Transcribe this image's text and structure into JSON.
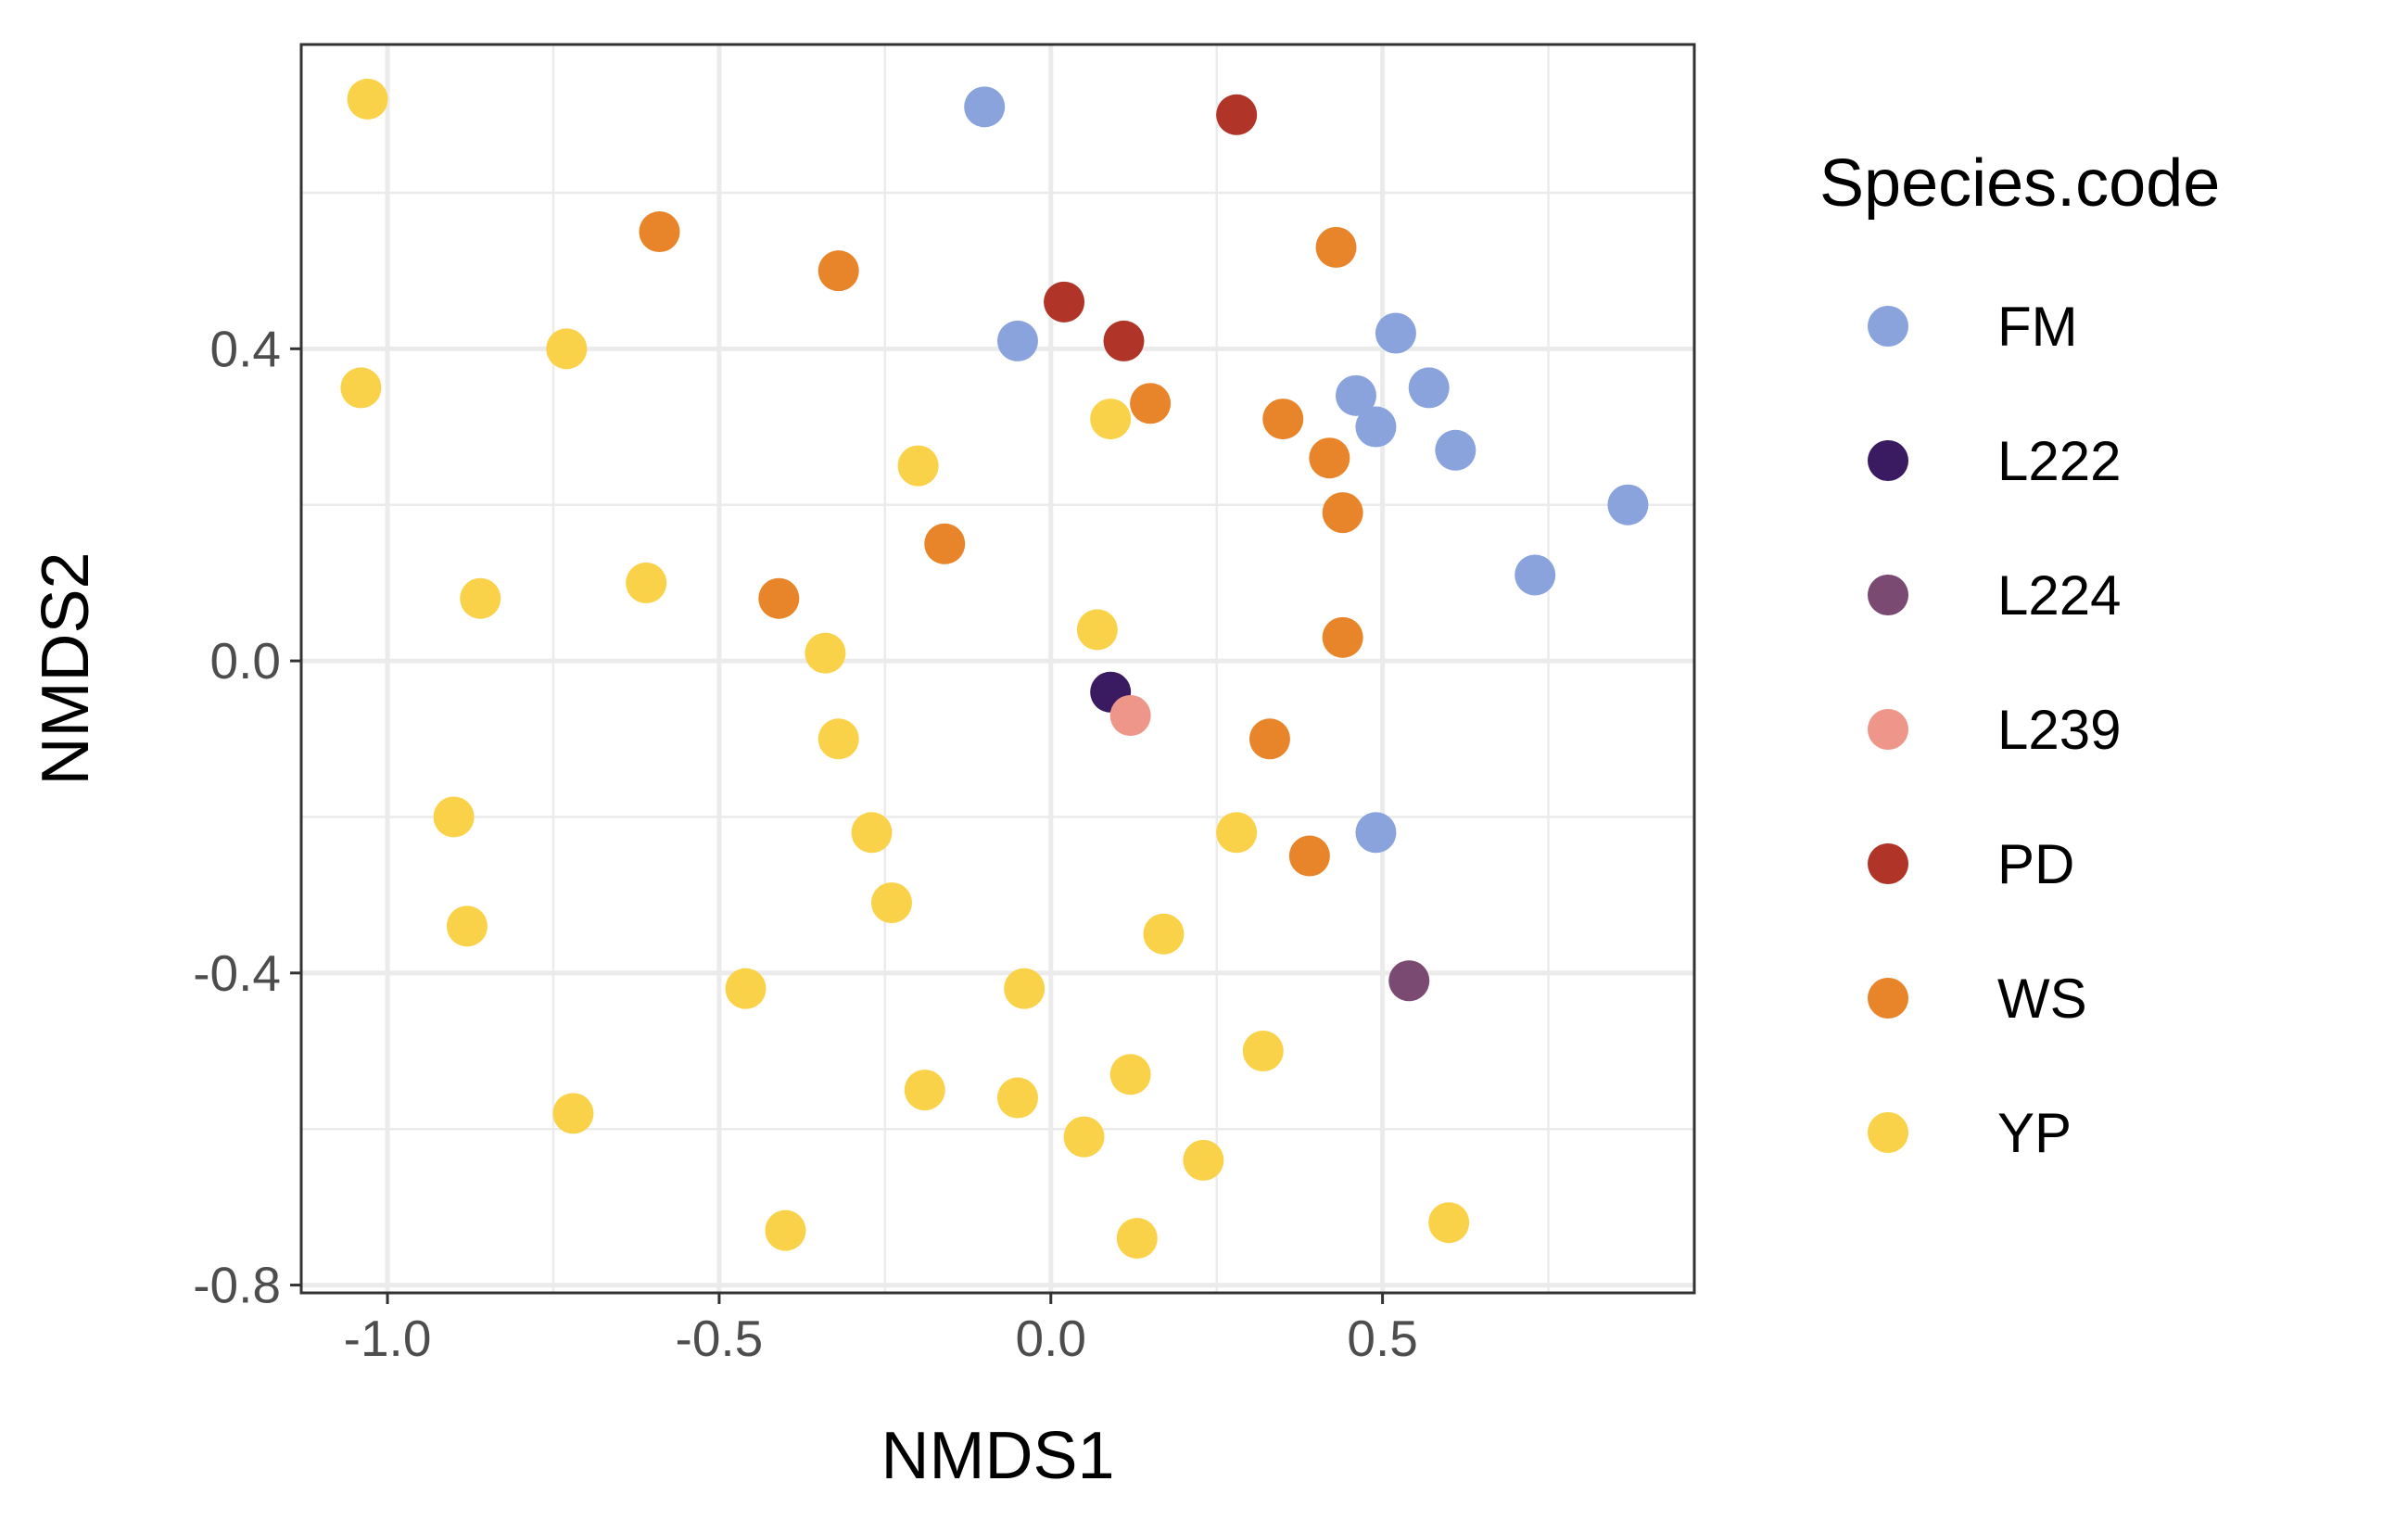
{
  "chart_data": {
    "type": "scatter",
    "xlabel": "NMDS1",
    "ylabel": "NMDS2",
    "xlim": [
      -1.13,
      0.97
    ],
    "ylim": [
      -0.81,
      0.79
    ],
    "xticks": [
      -1.0,
      -0.5,
      0.0,
      0.5
    ],
    "xtick_labels": [
      "-1.0",
      "-0.5",
      "0.0",
      "0.5"
    ],
    "yticks": [
      -0.8,
      -0.4,
      0.0,
      0.4
    ],
    "ytick_labels": [
      "-0.8",
      "-0.4",
      "0.0",
      "0.4"
    ],
    "grid": true,
    "legend": {
      "title": "Species.code",
      "position": "right"
    },
    "series": [
      {
        "name": "FM",
        "color": "#8aa3dd",
        "points": [
          [
            -0.1,
            0.71
          ],
          [
            -0.05,
            0.41
          ],
          [
            0.52,
            0.42
          ],
          [
            0.46,
            0.34
          ],
          [
            0.57,
            0.35
          ],
          [
            0.49,
            0.3
          ],
          [
            0.61,
            0.27
          ],
          [
            0.87,
            0.2
          ],
          [
            0.73,
            0.11
          ],
          [
            0.49,
            -0.22
          ]
        ]
      },
      {
        "name": "L222",
        "color": "#3a1a60",
        "points": [
          [
            0.09,
            -0.04
          ]
        ]
      },
      {
        "name": "L224",
        "color": "#7b4a72",
        "points": [
          [
            0.54,
            -0.41
          ]
        ]
      },
      {
        "name": "L239",
        "color": "#ef968a",
        "points": [
          [
            0.12,
            -0.07
          ]
        ]
      },
      {
        "name": "PD",
        "color": "#b03428",
        "points": [
          [
            0.28,
            0.7
          ],
          [
            0.02,
            0.46
          ],
          [
            0.11,
            0.41
          ]
        ]
      },
      {
        "name": "WS",
        "color": "#e8852a",
        "points": [
          [
            -0.59,
            0.55
          ],
          [
            -0.32,
            0.5
          ],
          [
            0.43,
            0.53
          ],
          [
            0.15,
            0.33
          ],
          [
            0.35,
            0.31
          ],
          [
            0.42,
            0.26
          ],
          [
            0.44,
            0.19
          ],
          [
            -0.16,
            0.15
          ],
          [
            -0.41,
            0.08
          ],
          [
            0.44,
            0.03
          ],
          [
            0.33,
            -0.1
          ],
          [
            0.39,
            -0.25
          ]
        ]
      },
      {
        "name": "YP",
        "color": "#fad24a",
        "points": [
          [
            -1.03,
            0.72
          ],
          [
            -0.73,
            0.4
          ],
          [
            -1.04,
            0.35
          ],
          [
            0.09,
            0.31
          ],
          [
            -0.2,
            0.25
          ],
          [
            -0.86,
            0.08
          ],
          [
            -0.61,
            0.1
          ],
          [
            -0.34,
            0.01
          ],
          [
            0.07,
            0.04
          ],
          [
            -0.32,
            -0.1
          ],
          [
            -0.9,
            -0.2
          ],
          [
            -0.27,
            -0.22
          ],
          [
            0.28,
            -0.22
          ],
          [
            -0.24,
            -0.31
          ],
          [
            -0.88,
            -0.34
          ],
          [
            0.17,
            -0.35
          ],
          [
            -0.46,
            -0.42
          ],
          [
            -0.04,
            -0.42
          ],
          [
            0.32,
            -0.5
          ],
          [
            0.12,
            -0.53
          ],
          [
            -0.19,
            -0.55
          ],
          [
            -0.05,
            -0.56
          ],
          [
            -0.72,
            -0.58
          ],
          [
            0.05,
            -0.61
          ],
          [
            0.23,
            -0.64
          ],
          [
            -0.4,
            -0.73
          ],
          [
            0.13,
            -0.74
          ],
          [
            0.6,
            -0.72
          ]
        ]
      }
    ]
  }
}
